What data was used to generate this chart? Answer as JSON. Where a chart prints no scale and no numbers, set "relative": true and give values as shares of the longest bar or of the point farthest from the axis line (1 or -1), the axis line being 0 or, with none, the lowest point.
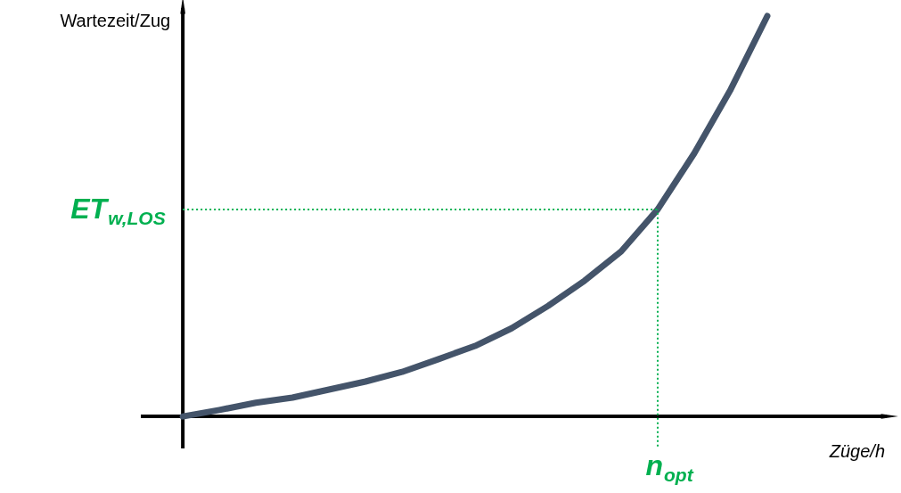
{
  "chart_data": {
    "type": "line",
    "relative": true,
    "ylabel": "Wartezeit/Zug",
    "xlabel": "Züge/h",
    "line_style": "solid",
    "categories": [
      null,
      null,
      null,
      null,
      null,
      null,
      null,
      null,
      null,
      null,
      null,
      null,
      null,
      null,
      null,
      null,
      null,
      null,
      null,
      null
    ],
    "series": [
      {
        "color": "#44546a",
        "values": [
          0,
          0.016,
          0.034,
          0.047,
          0.067,
          0.087,
          0.111,
          0.143,
          0.176,
          0.22,
          0.276,
          0.339,
          0.412,
          0.517,
          0.657,
          0.817,
          1.0,
          null,
          null,
          null
        ]
      }
    ],
    "ref_lines": [
      {
        "axis": "y",
        "value": 0.517,
        "label": "ET$_{w,LOS}$",
        "color": "#00b050",
        "line_style": "dotted"
      },
      {
        "axis": "x",
        "label": "n$_{opt}$",
        "color": "#00b050",
        "line_style": "dotted"
      }
    ]
  }
}
